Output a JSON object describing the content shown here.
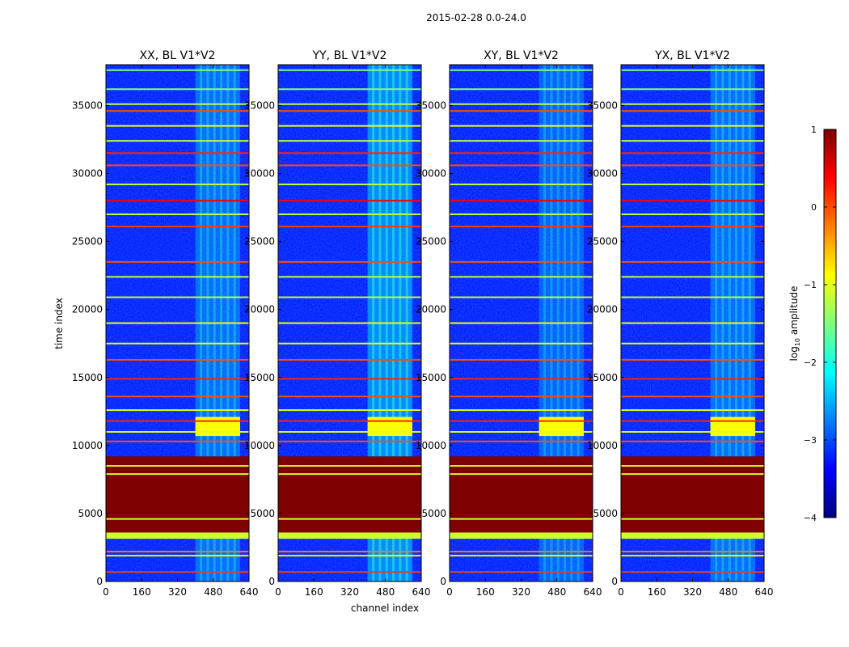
{
  "figure": {
    "suptitle": "2015-02-28 0.0-24.0",
    "xlabel": "channel index",
    "ylabel": "time index"
  },
  "colorbar": {
    "label": "log10 amplitude",
    "label_base": "log",
    "label_sub": "10",
    "label_rest": " amplitude",
    "colormap": "jet",
    "vmin": -4,
    "vmax": 1,
    "ticks": [
      1,
      0,
      -1,
      -2,
      -3,
      -4
    ],
    "tick_labels": [
      "1",
      "0",
      "−1",
      "−2",
      "−3",
      "−4"
    ],
    "colors": {
      "stop_0": "#00007f",
      "stop_1": "#0000ff",
      "stop_2": "#007fff",
      "stop_3": "#00ffff",
      "stop_4": "#7fff7f",
      "stop_5": "#ffff00",
      "stop_6": "#ff7f00",
      "stop_7": "#ff0000",
      "stop_8": "#7f0000"
    }
  },
  "chart_data": {
    "type": "heatmap",
    "x_range": [
      0,
      640
    ],
    "y_range": [
      0,
      38000
    ],
    "x_ticks": [
      0,
      160,
      320,
      480,
      640
    ],
    "x_tick_labels": [
      "0",
      "160",
      "320",
      "480",
      "640"
    ],
    "y_ticks": [
      0,
      5000,
      10000,
      15000,
      20000,
      25000,
      30000,
      35000
    ],
    "y_tick_labels": [
      "0",
      "5000",
      "10000",
      "15000",
      "20000",
      "25000",
      "30000",
      "35000"
    ],
    "background_log10_amplitude": -3.2,
    "panels": [
      {
        "title": "XX, BL V1*V2",
        "rfi_channel_range": [
          400,
          600
        ],
        "rfi_strength": 0.7
      },
      {
        "title": "YY, BL V1*V2",
        "rfi_channel_range": [
          400,
          600
        ],
        "rfi_strength": 1.0
      },
      {
        "title": "XY, BL V1*V2",
        "rfi_channel_range": [
          400,
          600
        ],
        "rfi_strength": 0.6
      },
      {
        "title": "YX, BL V1*V2",
        "rfi_channel_range": [
          400,
          600
        ],
        "rfi_strength": 0.7
      }
    ],
    "saturated_block": {
      "time_range": [
        3300,
        9200
      ],
      "log10_amplitude": 1
    },
    "bright_time_lines": [
      {
        "time": 700,
        "log10_amplitude": 0.1
      },
      {
        "time": 1900,
        "log10_amplitude": -0.8
      },
      {
        "time": 2200,
        "log10_amplitude": -0.2
      },
      {
        "time": 3200,
        "log10_amplitude": -1.1
      },
      {
        "time": 3500,
        "log10_amplitude": -1.1
      },
      {
        "time": 4600,
        "log10_amplitude": -1.2
      },
      {
        "time": 7900,
        "log10_amplitude": -1.3
      },
      {
        "time": 8500,
        "log10_amplitude": -1.0
      },
      {
        "time": 10300,
        "log10_amplitude": 0.0
      },
      {
        "time": 11000,
        "log10_amplitude": -1.0
      },
      {
        "time": 11800,
        "log10_amplitude": 0.2
      },
      {
        "time": 12600,
        "log10_amplitude": -1.0
      },
      {
        "time": 13600,
        "log10_amplitude": 0.0
      },
      {
        "time": 14900,
        "log10_amplitude": 0.2
      },
      {
        "time": 16300,
        "log10_amplitude": 0.0
      },
      {
        "time": 17500,
        "log10_amplitude": -1.0
      },
      {
        "time": 19000,
        "log10_amplitude": -1.0
      },
      {
        "time": 20900,
        "log10_amplitude": -1.2
      },
      {
        "time": 22400,
        "log10_amplitude": -1.2
      },
      {
        "time": 23500,
        "log10_amplitude": 0.0
      },
      {
        "time": 26100,
        "log10_amplitude": 0.1
      },
      {
        "time": 27000,
        "log10_amplitude": -1.2
      },
      {
        "time": 28000,
        "log10_amplitude": 0.4
      },
      {
        "time": 29200,
        "log10_amplitude": -1.2
      },
      {
        "time": 30600,
        "log10_amplitude": 0.0
      },
      {
        "time": 31500,
        "log10_amplitude": 0.2
      },
      {
        "time": 32400,
        "log10_amplitude": -1.2
      },
      {
        "time": 33500,
        "log10_amplitude": -1.0
      },
      {
        "time": 34600,
        "log10_amplitude": 0.0
      },
      {
        "time": 35100,
        "log10_amplitude": -1.2
      },
      {
        "time": 36200,
        "log10_amplitude": -1.5
      },
      {
        "time": 37600,
        "log10_amplitude": -1.5
      }
    ],
    "rfi_burst": {
      "time_range": [
        10700,
        12100
      ],
      "log10_amplitude": -0.9
    }
  }
}
